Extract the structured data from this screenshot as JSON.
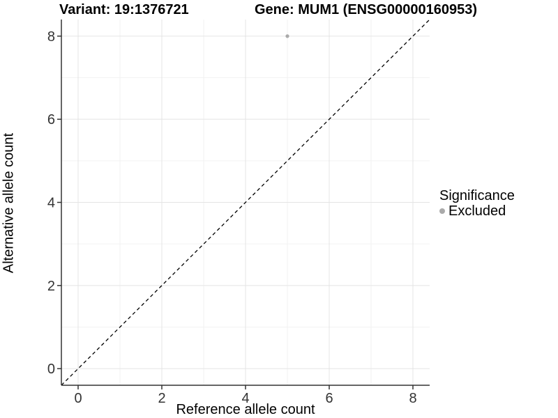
{
  "titles": {
    "variant": "Variant: 19:1376721",
    "gene": "Gene: MUM1 (ENSG00000160953)"
  },
  "axes": {
    "x_label": "Reference allele count",
    "y_label": "Alternative allele count"
  },
  "legend": {
    "title": "Significance",
    "items": [
      {
        "label": "Excluded",
        "color": "#aaaaaa"
      }
    ]
  },
  "colors": {
    "background": "#ffffff",
    "grid_major": "#e4e4e4",
    "grid_minor": "#f2f2f2",
    "axis_line": "#333333",
    "tick_label": "#333333",
    "reference_line": "#000000",
    "point": "#aaaaaa"
  },
  "chart_data": {
    "type": "scatter",
    "title": "Variant: 19:1376721    Gene: MUM1 (ENSG00000160953)",
    "xlabel": "Reference allele count",
    "ylabel": "Alternative allele count",
    "xlim": [
      -0.4,
      8.4
    ],
    "ylim": [
      -0.4,
      8.4
    ],
    "x_ticks": [
      0,
      2,
      4,
      6,
      8
    ],
    "y_ticks": [
      0,
      2,
      4,
      6,
      8
    ],
    "x_minor": [
      1,
      3,
      5,
      7
    ],
    "y_minor": [
      1,
      3,
      5,
      7
    ],
    "grid": "major+minor",
    "legend_position": "right",
    "legend_title": "Significance",
    "series": [
      {
        "name": "Excluded",
        "color": "#aaaaaa",
        "points": [
          {
            "x": 5,
            "y": 8
          }
        ]
      }
    ],
    "reference_line": {
      "type": "identity",
      "slope": 1,
      "intercept": 0,
      "style": "dashed",
      "color": "#000000"
    }
  }
}
